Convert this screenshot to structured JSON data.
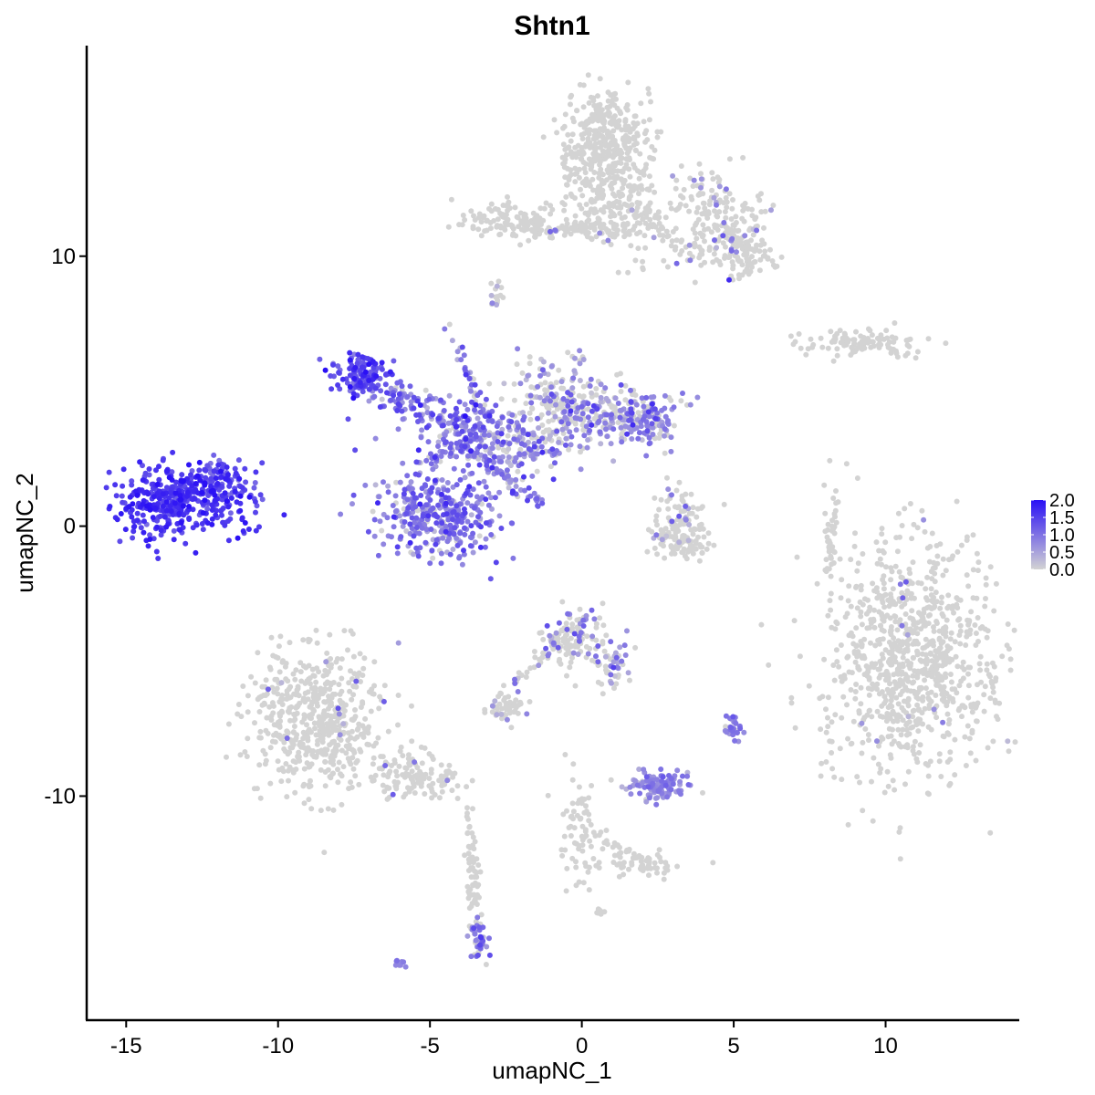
{
  "chart_data": {
    "type": "scatter",
    "title": "Shtn1",
    "xlabel": "umapNC_1",
    "ylabel": "umapNC_2",
    "xlim": [
      -16.3,
      14.4
    ],
    "ylim": [
      -18.3,
      17.8
    ],
    "x_ticks": [
      -15,
      -10,
      -5,
      0,
      5,
      10
    ],
    "x_tick_labels": [
      "-15",
      "-10",
      "-5",
      "0",
      "5",
      "10"
    ],
    "y_ticks": [
      -10,
      0,
      10
    ],
    "y_tick_labels": [
      "-10",
      "0",
      "10"
    ],
    "grid": false,
    "legend": {
      "position": "right",
      "title": "",
      "min": 0.0,
      "max": 2.0,
      "breaks": [
        0.0,
        0.5,
        1.0,
        1.5,
        2.0
      ],
      "break_labels": [
        "0.0",
        "0.5",
        "1.0",
        "1.5",
        "2.0"
      ],
      "low_color": "#d3d3d3",
      "high_color": "#2a10f5"
    },
    "clusters": [
      {
        "cx": -13.2,
        "cy": 0.9,
        "sx": 1.1,
        "sy": 0.65,
        "n": 420,
        "expr_mean": 1.6,
        "expr_sd": 0.25,
        "expr_frac": 1.0
      },
      {
        "cx": -11.9,
        "cy": 1.7,
        "sx": 0.45,
        "sy": 0.5,
        "n": 60,
        "expr_mean": 1.4,
        "expr_sd": 0.3,
        "expr_frac": 1.0
      },
      {
        "cx": -7.2,
        "cy": 5.6,
        "sx": 0.55,
        "sy": 0.35,
        "n": 130,
        "expr_mean": 1.4,
        "expr_sd": 0.35,
        "expr_frac": 1.0
      },
      {
        "cx": -6.0,
        "cy": 4.7,
        "sx": 0.6,
        "sy": 0.3,
        "n": 70,
        "expr_mean": 1.1,
        "expr_sd": 0.35,
        "expr_frac": 0.9
      },
      {
        "cx": -4.8,
        "cy": 0.4,
        "sx": 1.0,
        "sy": 0.85,
        "n": 380,
        "expr_mean": 0.95,
        "expr_sd": 0.35,
        "expr_frac": 0.92
      },
      {
        "cx": -4.0,
        "cy": 3.6,
        "sx": 0.8,
        "sy": 0.5,
        "n": 160,
        "expr_mean": 0.9,
        "expr_sd": 0.4,
        "expr_frac": 0.85
      },
      {
        "cx": -2.3,
        "cy": 2.9,
        "sx": 0.7,
        "sy": 0.6,
        "n": 140,
        "expr_mean": 0.8,
        "expr_sd": 0.4,
        "expr_frac": 0.75
      },
      {
        "cx": -0.8,
        "cy": 4.4,
        "sx": 0.9,
        "sy": 0.9,
        "n": 240,
        "expr_mean": 0.7,
        "expr_sd": 0.35,
        "expr_frac": 0.55
      },
      {
        "cx": 1.5,
        "cy": 4.1,
        "sx": 0.9,
        "sy": 0.55,
        "n": 170,
        "expr_mean": 0.75,
        "expr_sd": 0.35,
        "expr_frac": 0.55
      },
      {
        "cx": 2.3,
        "cy": 3.8,
        "sx": 0.4,
        "sy": 0.4,
        "n": 50,
        "expr_mean": 0.9,
        "expr_sd": 0.3,
        "expr_frac": 0.8
      },
      {
        "cx": 0.7,
        "cy": 14.0,
        "sx": 0.75,
        "sy": 1.1,
        "n": 420,
        "expr_mean": 0.7,
        "expr_sd": 0.3,
        "expr_frac": 0.0
      },
      {
        "cx": 1.3,
        "cy": 11.6,
        "sx": 0.8,
        "sy": 0.9,
        "n": 150,
        "expr_mean": 0.7,
        "expr_sd": 0.3,
        "expr_frac": 0.03
      },
      {
        "cx": 4.4,
        "cy": 11.2,
        "sx": 0.8,
        "sy": 0.9,
        "n": 200,
        "expr_mean": 0.85,
        "expr_sd": 0.3,
        "expr_frac": 0.15
      },
      {
        "cx": 5.6,
        "cy": 10.0,
        "sx": 0.5,
        "sy": 0.5,
        "n": 70,
        "expr_mean": 0.7,
        "expr_sd": 0.3,
        "expr_frac": 0.1
      },
      {
        "cx": -2.5,
        "cy": 11.3,
        "sx": 0.75,
        "sy": 0.35,
        "n": 110,
        "expr_mean": 0.7,
        "expr_sd": 0.3,
        "expr_frac": 0.0
      },
      {
        "cx": -0.3,
        "cy": 11.0,
        "sx": 0.8,
        "sy": 0.2,
        "n": 50,
        "expr_mean": 0.8,
        "expr_sd": 0.3,
        "expr_frac": 0.05
      },
      {
        "cx": 9.0,
        "cy": 6.8,
        "sx": 1.0,
        "sy": 0.25,
        "n": 110,
        "expr_mean": 0.5,
        "expr_sd": 0.2,
        "expr_frac": 0.0
      },
      {
        "cx": 3.2,
        "cy": 0.2,
        "sx": 0.5,
        "sy": 0.6,
        "n": 90,
        "expr_mean": 0.6,
        "expr_sd": 0.3,
        "expr_frac": 0.12
      },
      {
        "cx": 3.3,
        "cy": -0.7,
        "sx": 0.6,
        "sy": 0.25,
        "n": 60,
        "expr_mean": 0.5,
        "expr_sd": 0.2,
        "expr_frac": 0.05
      },
      {
        "cx": 8.2,
        "cy": -0.2,
        "sx": 0.12,
        "sy": 0.9,
        "n": 40,
        "expr_mean": 0.5,
        "expr_sd": 0.2,
        "expr_frac": 0.0
      },
      {
        "cx": 10.9,
        "cy": -4.9,
        "sx": 1.5,
        "sy": 2.2,
        "n": 900,
        "expr_mean": 0.8,
        "expr_sd": 0.25,
        "expr_frac": 0.012
      },
      {
        "cx": -0.3,
        "cy": -4.2,
        "sx": 0.6,
        "sy": 0.6,
        "n": 130,
        "expr_mean": 0.8,
        "expr_sd": 0.35,
        "expr_frac": 0.25
      },
      {
        "cx": 1.0,
        "cy": -5.1,
        "sx": 0.3,
        "sy": 0.5,
        "n": 40,
        "expr_mean": 0.8,
        "expr_sd": 0.3,
        "expr_frac": 0.35
      },
      {
        "cx": -2.5,
        "cy": -6.8,
        "sx": 0.35,
        "sy": 0.25,
        "n": 45,
        "expr_mean": 0.6,
        "expr_sd": 0.3,
        "expr_frac": 0.12
      },
      {
        "cx": -8.7,
        "cy": -7.2,
        "sx": 1.1,
        "sy": 1.3,
        "n": 550,
        "expr_mean": 0.8,
        "expr_sd": 0.3,
        "expr_frac": 0.02
      },
      {
        "cx": -5.5,
        "cy": -9.3,
        "sx": 0.8,
        "sy": 0.4,
        "n": 120,
        "expr_mean": 0.8,
        "expr_sd": 0.3,
        "expr_frac": 0.03
      },
      {
        "cx": -3.4,
        "cy": -15.3,
        "sx": 0.15,
        "sy": 0.4,
        "n": 45,
        "expr_mean": 0.8,
        "expr_sd": 0.3,
        "expr_frac": 0.7
      },
      {
        "cx": -3.6,
        "cy": -12.7,
        "sx": 0.15,
        "sy": 0.9,
        "n": 40,
        "expr_mean": 0.6,
        "expr_sd": 0.2,
        "expr_frac": 0.0
      },
      {
        "cx": 2.5,
        "cy": -9.6,
        "sx": 0.45,
        "sy": 0.3,
        "n": 110,
        "expr_mean": 0.8,
        "expr_sd": 0.2,
        "expr_frac": 0.95
      },
      {
        "cx": 5.0,
        "cy": -7.5,
        "sx": 0.15,
        "sy": 0.25,
        "n": 30,
        "expr_mean": 0.85,
        "expr_sd": 0.2,
        "expr_frac": 0.9
      },
      {
        "cx": 0.0,
        "cy": -11.3,
        "sx": 0.35,
        "sy": 1.0,
        "n": 70,
        "expr_mean": 0.6,
        "expr_sd": 0.2,
        "expr_frac": 0.0
      },
      {
        "cx": 1.9,
        "cy": -12.5,
        "sx": 0.7,
        "sy": 0.25,
        "n": 50,
        "expr_mean": 0.6,
        "expr_sd": 0.2,
        "expr_frac": 0.0
      },
      {
        "cx": -6.0,
        "cy": -16.2,
        "sx": 0.1,
        "sy": 0.08,
        "n": 8,
        "expr_mean": 0.8,
        "expr_sd": 0.2,
        "expr_frac": 1.0
      },
      {
        "cx": -2.8,
        "cy": 8.7,
        "sx": 0.15,
        "sy": 0.25,
        "n": 15,
        "expr_mean": 0.6,
        "expr_sd": 0.2,
        "expr_frac": 0.4
      },
      {
        "cx": 0.6,
        "cy": -14.3,
        "sx": 0.1,
        "sy": 0.1,
        "n": 8,
        "expr_mean": 0.5,
        "expr_sd": 0.1,
        "expr_frac": 0.0
      }
    ],
    "filaments": [
      {
        "from": [
          -4.4,
          7.4
        ],
        "to": [
          -2.9,
          3.2
        ],
        "n": 45,
        "expr_mean": 0.9,
        "expr_sd": 0.35,
        "expr_frac": 0.8
      },
      {
        "from": [
          -3.7,
          2.8
        ],
        "to": [
          -1.3,
          0.7
        ],
        "n": 45,
        "expr_mean": 1.0,
        "expr_sd": 0.3,
        "expr_frac": 0.95
      },
      {
        "from": [
          -5.2,
          2.3
        ],
        "to": [
          -3.3,
          3.4
        ],
        "n": 30,
        "expr_mean": 1.0,
        "expr_sd": 0.3,
        "expr_frac": 0.9
      },
      {
        "from": [
          -3.5,
          -14.5
        ],
        "to": [
          -3.8,
          -10.4
        ],
        "n": 25,
        "expr_mean": 0.6,
        "expr_sd": 0.2,
        "expr_frac": 0.0
      },
      {
        "from": [
          -2.7,
          -6.4
        ],
        "to": [
          -1.0,
          -4.5
        ],
        "n": 25,
        "expr_mean": 0.7,
        "expr_sd": 0.3,
        "expr_frac": 0.3
      },
      {
        "from": [
          0.5,
          -11.5
        ],
        "to": [
          2.4,
          -12.6
        ],
        "n": 25,
        "expr_mean": 0.6,
        "expr_sd": 0.2,
        "expr_frac": 0.0
      },
      {
        "from": [
          2.0,
          11.7
        ],
        "to": [
          3.2,
          10.2
        ],
        "n": 25,
        "expr_mean": 0.6,
        "expr_sd": 0.2,
        "expr_frac": 0.0
      },
      {
        "from": [
          -0.9,
          11.0
        ],
        "to": [
          0.8,
          11.3
        ],
        "n": 20,
        "expr_mean": 0.8,
        "expr_sd": 0.3,
        "expr_frac": 0.1
      }
    ]
  }
}
